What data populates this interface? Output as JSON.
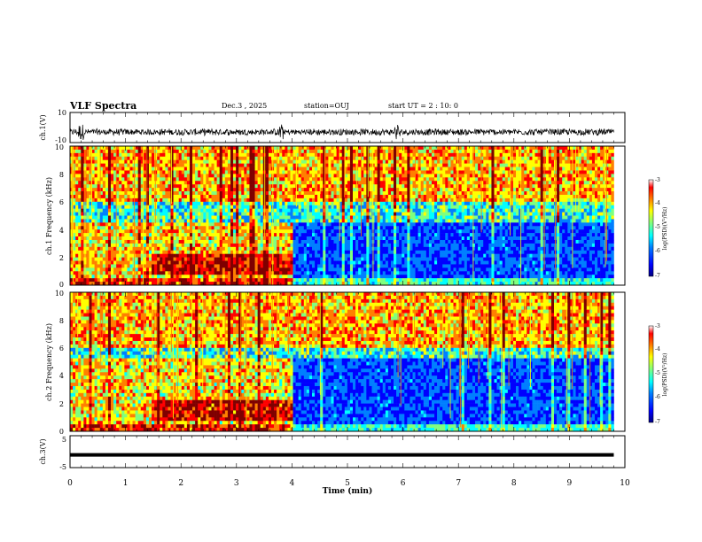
{
  "header": {
    "title": "VLF Spectra",
    "date": "Dec.3 , 2025",
    "station": "station=OUJ",
    "start": "start UT = 2 : 10: 0"
  },
  "colors": {
    "scale": [
      "#00007f",
      "#0000ff",
      "#007fff",
      "#00ffff",
      "#7fff7f",
      "#ffff00",
      "#ff7f00",
      "#ff0000",
      "#7f0000"
    ],
    "trace": "#000000"
  },
  "chart_data": [
    {
      "type": "line",
      "name": "ch1-waveform",
      "ylabel": "ch.1(V)",
      "ylim": [
        -10,
        10
      ],
      "yticks": [
        "10",
        "-10"
      ],
      "x_range": [
        0,
        9.8
      ],
      "baseline": -3,
      "envelope_note": "noise amplitude roughly ±2 V with spikes near 0.2, 3.8 and 5.9 min"
    },
    {
      "type": "heatmap",
      "name": "ch1-spectrogram",
      "ylabel": "ch.1 Frequency (kHz)",
      "ylim": [
        0,
        10
      ],
      "yticks": [
        "0",
        "2",
        "4",
        "6",
        "8",
        "10"
      ],
      "x_range": [
        0,
        9.8
      ],
      "colorbar": {
        "label": "log(PSD)(V²/Hz)",
        "ticks": [
          "-3",
          "-4",
          "-5",
          "-6",
          "-7"
        ],
        "range": [
          -7,
          -3
        ]
      },
      "features": {
        "strong_band_top_khz": 4.6,
        "strong_band_until_min": 4.0,
        "upper_band_start_min": 1.45
      }
    },
    {
      "type": "heatmap",
      "name": "ch2-spectrogram",
      "ylabel": "ch.2 Frequency (kHz)",
      "ylim": [
        0,
        10
      ],
      "yticks": [
        "0",
        "2",
        "4",
        "6",
        "8",
        "10"
      ],
      "x_range": [
        0,
        9.8
      ],
      "colorbar": {
        "label": "log(PSD)(V²/Hz)",
        "ticks": [
          "-3",
          "-4",
          "-5",
          "-6",
          "-7"
        ],
        "range": [
          -7,
          -3
        ]
      },
      "features": {
        "strong_band_top_khz": 5.2,
        "strong_band_until_min": 4.0,
        "upper_band_start_min": 1.45
      }
    },
    {
      "type": "line",
      "name": "ch3-waveform",
      "ylabel": "ch.3(V)",
      "ylim": [
        -5,
        5
      ],
      "yticks": [
        "5",
        "-5"
      ],
      "x_range": [
        0,
        9.8
      ],
      "values": [
        -1,
        -1
      ],
      "x": [
        0,
        9.8
      ]
    }
  ],
  "xaxis": {
    "label": "Time (min)",
    "range": [
      0,
      10
    ],
    "ticks": [
      "0",
      "1",
      "2",
      "3",
      "4",
      "5",
      "6",
      "7",
      "8",
      "9",
      "10"
    ]
  }
}
